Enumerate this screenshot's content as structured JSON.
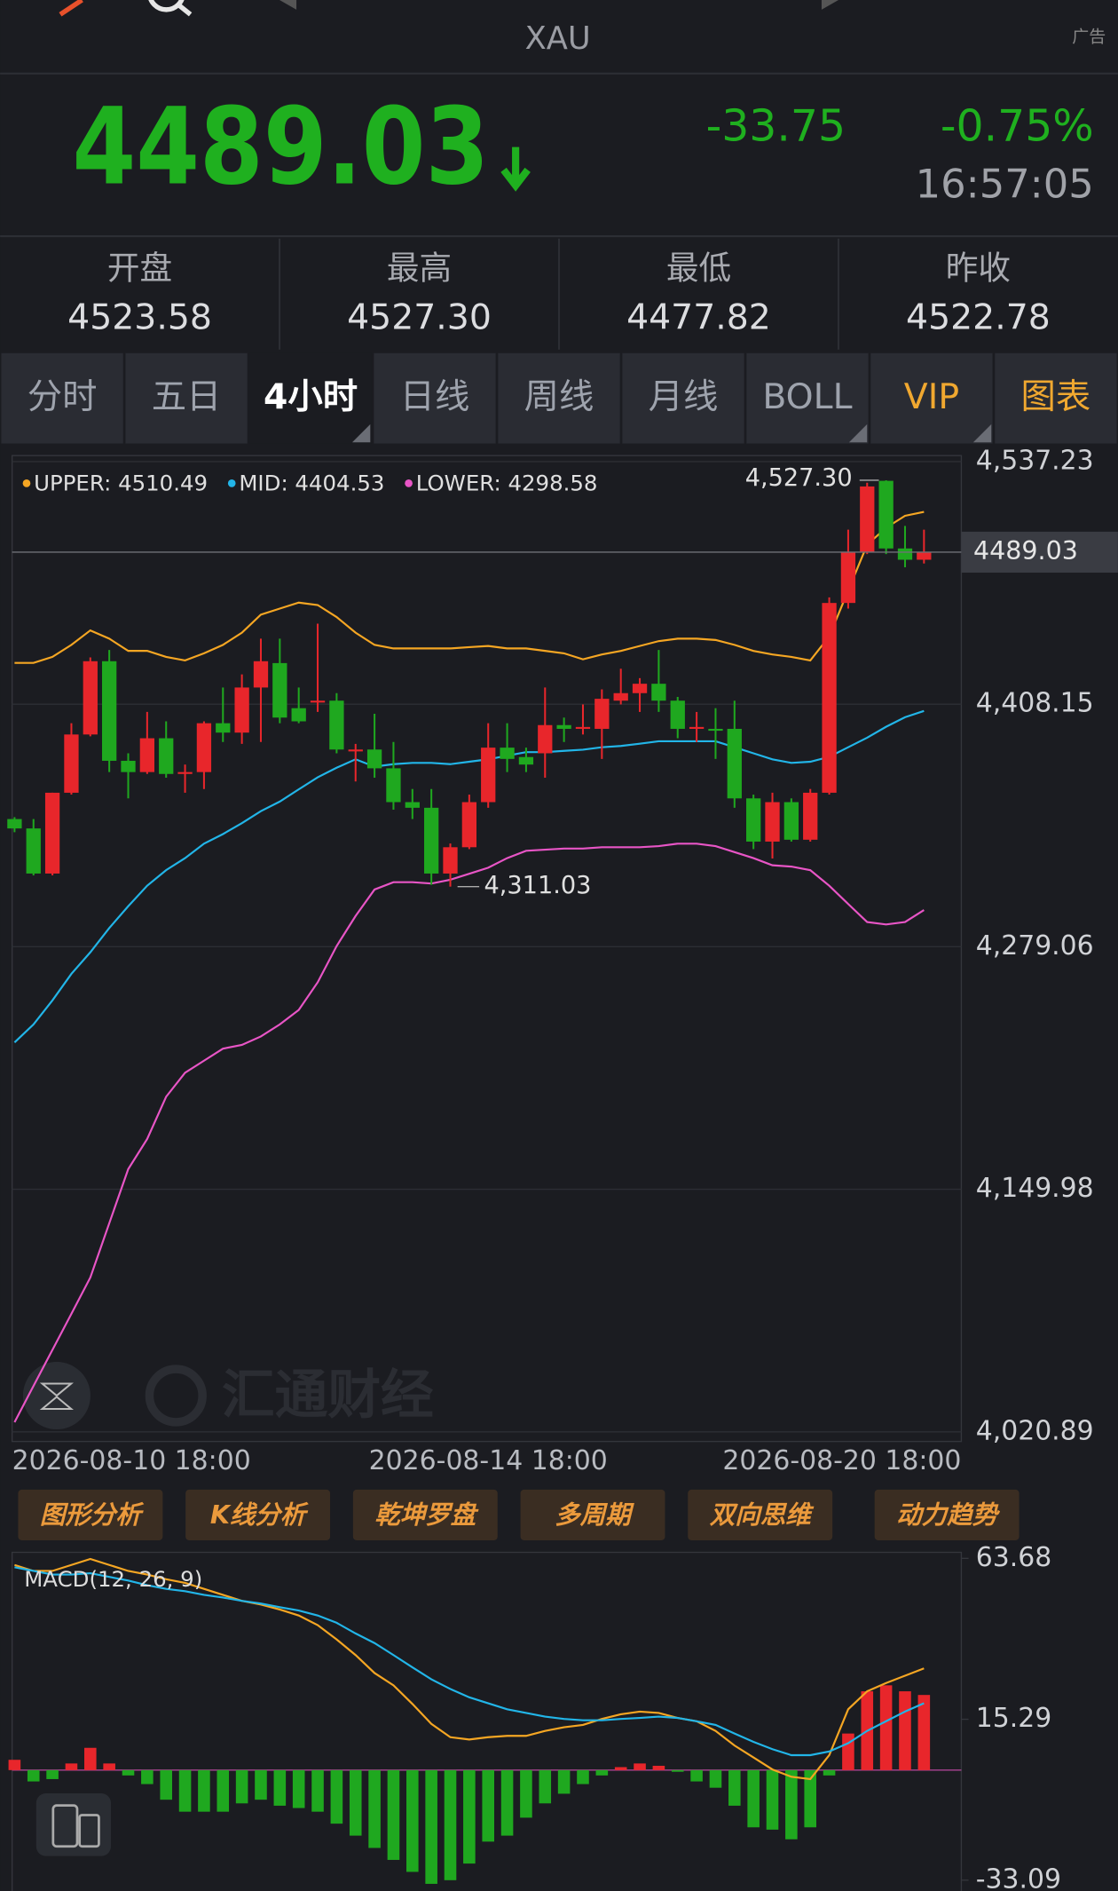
{
  "header": {
    "symbol": "XAU",
    "ad": "广告"
  },
  "quote": {
    "price": "4489.03",
    "change": "-33.75",
    "change_pct": "-0.75%",
    "time": "16:57:05"
  },
  "stats": [
    {
      "label": "开盘",
      "value": "4523.58"
    },
    {
      "label": "最高",
      "value": "4527.30"
    },
    {
      "label": "最低",
      "value": "4477.82"
    },
    {
      "label": "昨收",
      "value": "4522.78"
    }
  ],
  "tabs": {
    "items": [
      "分时",
      "五日",
      "4小时",
      "日线",
      "周线",
      "月线",
      "BOLL",
      "VIP",
      "图表"
    ],
    "active": 2
  },
  "tools": [
    "图形分析",
    "K线分析",
    "乾坤罗盘",
    "多周期",
    "双向思维",
    "动力趋势"
  ],
  "watermark": "汇通财经",
  "chart_data": [
    {
      "type": "candlestick",
      "categories": [
        "2026-08-10 18:00",
        null,
        null,
        null,
        null,
        null,
        null,
        null,
        null,
        null,
        null,
        null,
        null,
        null,
        null,
        null,
        null,
        null,
        null,
        null,
        null,
        null,
        null,
        null,
        null,
        "2026-08-14 18:00",
        null,
        null,
        null,
        null,
        null,
        null,
        null,
        null,
        null,
        null,
        null,
        null,
        null,
        null,
        null,
        null,
        null,
        null,
        null,
        null,
        null,
        null,
        "2026-08-20 18:00"
      ],
      "open": [
        4347,
        4342,
        4318,
        4361,
        4392,
        4431,
        4378,
        4372,
        4390,
        4371,
        4372,
        4398,
        4393,
        4417,
        4430,
        4406,
        4409,
        4410,
        4383,
        4384,
        4374,
        4356,
        4353,
        4318,
        4332,
        4356,
        4385,
        4380,
        4382,
        4397,
        4395,
        4395,
        4410,
        4414,
        4419,
        4410,
        4395,
        4395,
        4395,
        4358,
        4335,
        4356,
        4336,
        4361,
        4462,
        4489,
        4527,
        4491,
        4485
      ],
      "high": [
        4348,
        4347,
        4361,
        4398,
        4433,
        4437,
        4382,
        4404,
        4399,
        4376,
        4399,
        4417,
        4424,
        4443,
        4443,
        4417,
        4451,
        4414,
        4387,
        4403,
        4388,
        4363,
        4363,
        4334,
        4360,
        4398,
        4398,
        4385,
        4417,
        4401,
        4408,
        4416,
        4427,
        4422,
        4437,
        4412,
        4404,
        4406,
        4410,
        4360,
        4361,
        4358,
        4363,
        4465,
        4501,
        4526,
        4527.3,
        4503,
        4501
      ],
      "low": [
        4340,
        4317,
        4317,
        4360,
        4391,
        4372,
        4358,
        4371,
        4369,
        4361,
        4363,
        4388,
        4387,
        4388,
        4398,
        4398,
        4404,
        4382,
        4367,
        4369,
        4352,
        4347,
        4312,
        4311.03,
        4331,
        4353,
        4372,
        4372,
        4369,
        4388,
        4392,
        4379,
        4408,
        4404,
        4404,
        4390,
        4388,
        4379,
        4353,
        4331,
        4326,
        4335,
        4335,
        4360,
        4459,
        4488,
        4488,
        4481,
        4483
      ],
      "close": [
        4342,
        4318,
        4361,
        4392,
        4431,
        4378,
        4372,
        4390,
        4371,
        4372,
        4398,
        4393,
        4417,
        4431,
        4401,
        4399,
        4410,
        4384,
        4384,
        4374,
        4356,
        4353,
        4318,
        4332,
        4356,
        4385,
        4379,
        4376,
        4397,
        4395,
        4396,
        4411,
        4414,
        4419,
        4410,
        4395,
        4396,
        4394,
        4358,
        4335,
        4356,
        4336,
        4361,
        4462,
        4489,
        4524,
        4491,
        4485,
        4489.03
      ],
      "up_color": "#e8262b",
      "down_color": "#1fa81f",
      "series": [
        {
          "name": "UPPER: 4510.49",
          "color": "#f5a623",
          "values": [
            4430.1,
            4430.1,
            4433.3,
            4439.7,
            4447.4,
            4443.0,
            4436.5,
            4436.5,
            4433.3,
            4431.4,
            4435.2,
            4439.7,
            4446.2,
            4455.8,
            4459.0,
            4462.2,
            4460.9,
            4454.5,
            4446.2,
            4439.7,
            4437.8,
            4437.8,
            4437.8,
            4437.8,
            4438.5,
            4439.1,
            4437.8,
            4437.8,
            4436.5,
            4435.2,
            4432.0,
            4434.6,
            4436.5,
            4439.1,
            4441.7,
            4443.0,
            4443.0,
            4442.3,
            4439.7,
            4436.5,
            4434.6,
            4433.3,
            4431.4,
            4444.2,
            4468.6,
            4493.0,
            4502.0,
            4508.4,
            4510.49
          ]
        },
        {
          "name": "MID: 4404.53",
          "color": "#22b5e8",
          "values": [
            4228.1,
            4237.7,
            4250.5,
            4264.6,
            4276.1,
            4289.0,
            4300.6,
            4311.5,
            4319.8,
            4326.2,
            4333.9,
            4339.0,
            4344.8,
            4351.2,
            4356.3,
            4362.8,
            4369.2,
            4374.3,
            4378.8,
            4374.9,
            4376.2,
            4376.9,
            4376.9,
            4376.2,
            4377.5,
            4378.8,
            4380.7,
            4382.6,
            4382.6,
            4383.3,
            4383.9,
            4385.2,
            4385.9,
            4387.1,
            4388.4,
            4388.4,
            4388.4,
            4388.4,
            4385.2,
            4382.0,
            4378.8,
            4376.9,
            4377.5,
            4380.1,
            4385.2,
            4390.3,
            4396.1,
            4401.2,
            4404.53
          ]
        },
        {
          "name": "LOWER: 4298.58",
          "color": "#e855c6",
          "values": [
            4026.0,
            4045.3,
            4064.5,
            4083.7,
            4103.0,
            4131.9,
            4160.7,
            4176.7,
            4199.2,
            4212.0,
            4218.4,
            4224.8,
            4226.8,
            4231.3,
            4237.7,
            4245.4,
            4260.1,
            4279.4,
            4295.4,
            4309.5,
            4313.4,
            4313.4,
            4312.7,
            4314.7,
            4317.9,
            4321.1,
            4326.2,
            4330.1,
            4330.7,
            4331.3,
            4331.3,
            4332.0,
            4332.0,
            4332.0,
            4332.6,
            4333.9,
            4333.9,
            4332.6,
            4329.4,
            4326.2,
            4322.4,
            4321.7,
            4319.8,
            4311.5,
            4301.8,
            4292.2,
            4290.9,
            4292.2,
            4298.58
          ]
        }
      ],
      "high_label": "4,527.30",
      "low_label": "4,311.03",
      "last_label": "4489.03",
      "ylim": [
        4020.89,
        4537.23
      ],
      "yticks": [
        {
          "value": 4537.23,
          "label": "4,537.23"
        },
        {
          "value": 4408.15,
          "label": "4,408.15"
        },
        {
          "value": 4279.06,
          "label": "4,279.06"
        },
        {
          "value": 4149.98,
          "label": "4,149.98"
        },
        {
          "value": 4020.89,
          "label": "4,020.89"
        }
      ],
      "grid": true
    },
    {
      "type": "macd",
      "title": "MACD(12, 26, 9)",
      "histogram": [
        3.1,
        -3.4,
        -2.7,
        2.0,
        6.7,
        2.0,
        -1.6,
        -4.2,
        -8.9,
        -12.5,
        -12.5,
        -12.5,
        -10.0,
        -8.9,
        -10.7,
        -11.4,
        -12.5,
        -16.1,
        -19.7,
        -23.4,
        -27.0,
        -30.6,
        -34.2,
        -33.1,
        -28.1,
        -21.5,
        -19.7,
        -14.3,
        -10.0,
        -7.1,
        -4.2,
        -1.6,
        0.9,
        2.0,
        1.3,
        -0.5,
        -3.4,
        -5.3,
        -10.7,
        -17.2,
        -17.9,
        -20.8,
        -17.2,
        -1.6,
        11.0,
        23.7,
        25.5,
        23.7,
        22.6
      ],
      "up_color": "#e8262b",
      "down_color": "#1fa81f",
      "series": [
        {
          "color": "#f5a623",
          "values": [
            61.7,
            59.9,
            59.9,
            61.7,
            63.5,
            61.7,
            59.9,
            58.8,
            57.4,
            56.3,
            54.5,
            52.7,
            50.9,
            49.8,
            48.3,
            46.5,
            43.6,
            39.3,
            34.6,
            29.2,
            25.5,
            19.9,
            13.9,
            9.9,
            9.2,
            9.9,
            10.3,
            10.3,
            11.8,
            12.9,
            13.6,
            15.4,
            16.8,
            17.6,
            17.2,
            15.7,
            14.7,
            11.8,
            7.4,
            3.8,
            0.2,
            -2.0,
            -2.7,
            4.5,
            18.3,
            23.7,
            26.2,
            28.4,
            30.6
          ]
        },
        {
          "color": "#22b5e8",
          "values": [
            61.0,
            59.9,
            58.8,
            58.8,
            59.2,
            58.1,
            57.0,
            55.6,
            54.5,
            53.8,
            52.7,
            51.9,
            50.9,
            50.1,
            49.0,
            48.0,
            46.5,
            44.3,
            41.1,
            38.2,
            34.6,
            30.9,
            27.3,
            24.4,
            21.9,
            20.1,
            18.3,
            17.2,
            16.1,
            15.4,
            15.0,
            15.0,
            15.4,
            15.7,
            16.1,
            15.7,
            14.7,
            13.6,
            11.0,
            8.5,
            6.3,
            4.5,
            4.5,
            5.6,
            8.1,
            11.8,
            14.7,
            17.6,
            20.1
          ]
        }
      ],
      "ylim": [
        -33.09,
        63.68
      ],
      "yticks": [
        63.68,
        15.29,
        -33.09
      ],
      "zero_color": "#e855c6"
    }
  ]
}
